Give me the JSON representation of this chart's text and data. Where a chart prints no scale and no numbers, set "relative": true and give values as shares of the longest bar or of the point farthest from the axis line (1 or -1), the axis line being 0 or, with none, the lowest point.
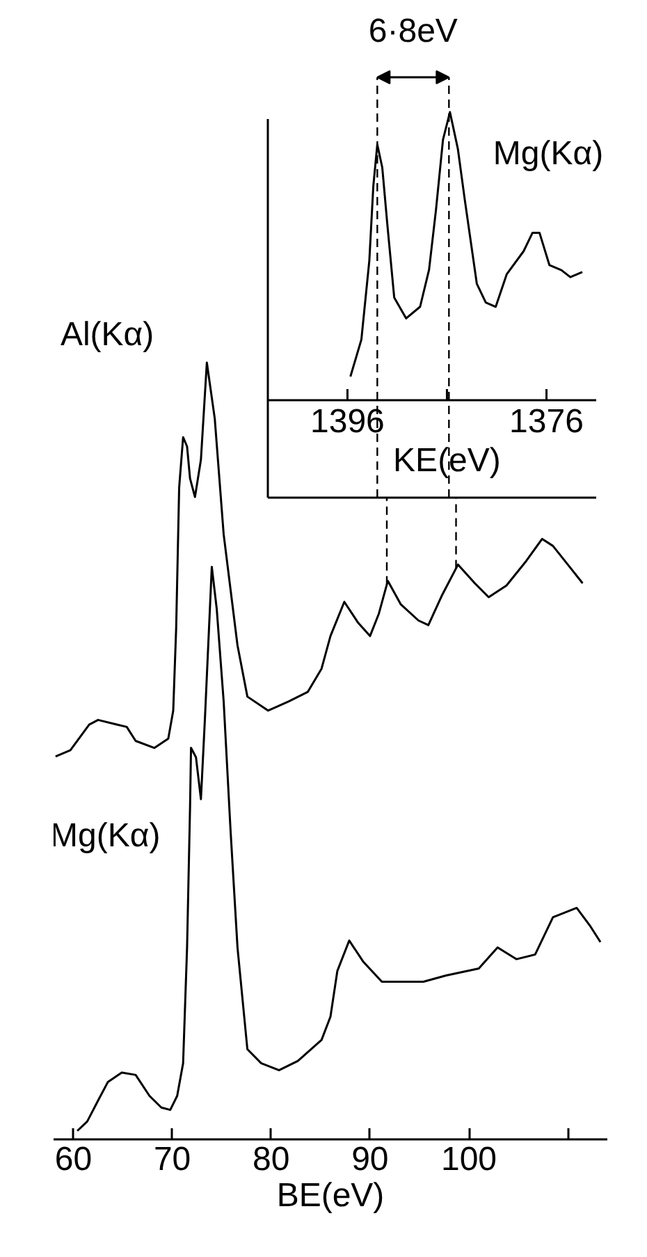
{
  "chart_data": [
    {
      "type": "line",
      "xlabel": "BE(eV)",
      "xlim": [
        58,
        114
      ],
      "xticks": [
        60,
        70,
        80,
        90,
        100,
        {
          "value": 110,
          "label": null
        }
      ],
      "relative": true,
      "series": [
        {
          "name": "Al(Kα)",
          "color": "#000000",
          "x": [
            58.2,
            59.7,
            61.6,
            62.5,
            64.4,
            65.4,
            66.3,
            68.2,
            69.6,
            70.1,
            70.4,
            70.7,
            71.1,
            71.5,
            71.8,
            72.3,
            72.9,
            73.5,
            74.3,
            75.2,
            76.6,
            77.6,
            79.7,
            81.8,
            83.7,
            85.1,
            86.0,
            87.4,
            88.8,
            90.0,
            90.9,
            91.8,
            93.1,
            94.9,
            95.9,
            97.3,
            98.9,
            100.6,
            102.0,
            103.8,
            105.7,
            107.4,
            108.5,
            110.0,
            111.5
          ],
          "values": [
            0.493,
            0.501,
            0.534,
            0.54,
            0.534,
            0.531,
            0.513,
            0.504,
            0.516,
            0.552,
            0.659,
            0.839,
            0.904,
            0.892,
            0.851,
            0.827,
            0.875,
            1.0,
            0.928,
            0.779,
            0.636,
            0.57,
            0.552,
            0.564,
            0.576,
            0.606,
            0.648,
            0.692,
            0.665,
            0.648,
            0.677,
            0.719,
            0.689,
            0.668,
            0.662,
            0.701,
            0.74,
            0.716,
            0.698,
            0.713,
            0.743,
            0.773,
            0.764,
            0.74,
            0.716
          ]
        },
        {
          "name": "Mg(Kα)",
          "color": "#000000",
          "x": [
            60.4,
            61.4,
            62.5,
            63.5,
            64.9,
            66.3,
            67.7,
            68.9,
            69.8,
            70.5,
            71.1,
            71.5,
            71.8,
            71.9,
            72.4,
            72.9,
            73.3,
            74.0,
            74.5,
            75.2,
            75.9,
            76.6,
            77.6,
            79.0,
            80.8,
            82.7,
            85.1,
            86.0,
            86.7,
            87.9,
            89.3,
            91.2,
            93.5,
            95.4,
            97.7,
            101.0,
            102.9,
            104.8,
            106.7,
            108.5,
            110.9,
            112.3,
            113.3
          ],
          "values": [
            0.011,
            0.023,
            0.05,
            0.074,
            0.086,
            0.083,
            0.056,
            0.041,
            0.038,
            0.056,
            0.098,
            0.247,
            0.427,
            0.504,
            0.492,
            0.438,
            0.54,
            0.737,
            0.683,
            0.564,
            0.397,
            0.247,
            0.116,
            0.098,
            0.089,
            0.101,
            0.128,
            0.158,
            0.217,
            0.256,
            0.229,
            0.203,
            0.203,
            0.203,
            0.211,
            0.22,
            0.247,
            0.232,
            0.238,
            0.286,
            0.298,
            0.274,
            0.254
          ]
        }
      ],
      "ref_lines": [
        {
          "axis": "x",
          "value": 91.7,
          "line_style": "dashed"
        },
        {
          "axis": "x",
          "value": 98.7,
          "line_style": "dashed"
        }
      ]
    },
    {
      "type": "line",
      "xlabel": "KE(eV)",
      "xlim": [
        1404,
        1371
      ],
      "xticks": [
        1396,
        {
          "value": 1386,
          "label": null
        },
        1376
      ],
      "relative": true,
      "series": [
        {
          "name": "Mg(Kα)",
          "color": "#000000",
          "x": [
            1395.7,
            1394.6,
            1393.8,
            1393.4,
            1393.0,
            1392.5,
            1392.0,
            1391.3,
            1390.1,
            1388.7,
            1387.8,
            1387.1,
            1386.4,
            1385.7,
            1384.9,
            1384.2,
            1383.0,
            1382.1,
            1381.1,
            1380.0,
            1378.3,
            1377.4,
            1376.7,
            1375.7,
            1374.5,
            1373.6,
            1372.4
          ],
          "values": [
            0.314,
            0.41,
            0.615,
            0.808,
            0.916,
            0.856,
            0.711,
            0.519,
            0.465,
            0.495,
            0.591,
            0.747,
            0.928,
            1.0,
            0.904,
            0.771,
            0.555,
            0.506,
            0.495,
            0.579,
            0.639,
            0.687,
            0.687,
            0.603,
            0.59,
            0.572,
            0.585
          ]
        }
      ],
      "ref_lines": [
        {
          "axis": "x",
          "value": 1393.0,
          "line_style": "dashed"
        },
        {
          "axis": "x",
          "value": 1385.8,
          "line_style": "dashed"
        }
      ],
      "annotations": [
        "6·8eV"
      ]
    }
  ]
}
